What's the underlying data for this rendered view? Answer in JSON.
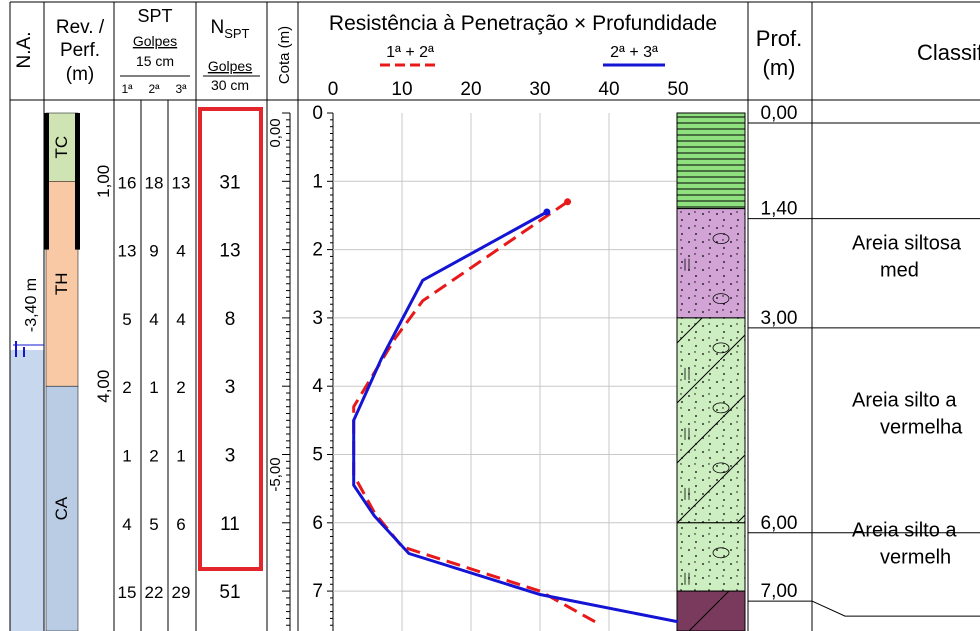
{
  "headers": {
    "na": "N.A.",
    "rev_perf": [
      "Rev. /",
      "Perf.",
      "(m)"
    ],
    "spt": {
      "title": "SPT",
      "golpes": "Golpes",
      "per": "15 cm",
      "sub": [
        "1ª",
        "2ª",
        "3ª"
      ]
    },
    "nspt": {
      "n": "N",
      "sub": "SPT",
      "golpes": "Golpes",
      "per": "30 cm"
    },
    "cota": "Cota (m)",
    "resist": "Resistência à Penetração × Profundidade",
    "prof": [
      "Prof.",
      "(m)"
    ],
    "class": "Classificação do Material"
  },
  "water_level": "-3,40 m",
  "rev_perf_layers": [
    {
      "label": "TC",
      "from": 0.0,
      "to": 1.0,
      "color": "#cfe3b3"
    },
    {
      "label": "TH",
      "from": 1.0,
      "to": 4.0,
      "color": "#f9c9a6"
    },
    {
      "label": "CA",
      "from": 4.0,
      "to": 7.6,
      "color": "#b9cce4"
    }
  ],
  "rev_depth_marks": [
    {
      "label": "1,00",
      "depth": 1.0
    },
    {
      "label": "4,00",
      "depth": 4.0
    }
  ],
  "spt_rows": [
    {
      "depth": 1.0,
      "b1": "16",
      "b2": "18",
      "b3": "13",
      "n": "31"
    },
    {
      "depth": 2.0,
      "b1": "13",
      "b2": "9",
      "b3": "4",
      "n": "13"
    },
    {
      "depth": 3.0,
      "b1": "5",
      "b2": "4",
      "b3": "4",
      "n": "8"
    },
    {
      "depth": 4.0,
      "b1": "2",
      "b2": "1",
      "b3": "2",
      "n": "3"
    },
    {
      "depth": 5.0,
      "b1": "1",
      "b2": "2",
      "b3": "1",
      "n": "3"
    },
    {
      "depth": 6.0,
      "b1": "4",
      "b2": "5",
      "b3": "6",
      "n": "11"
    },
    {
      "depth": 7.0,
      "b1": "15",
      "b2": "22",
      "b3": "29",
      "n": "51"
    }
  ],
  "cota_labels": [
    {
      "label": "0,00",
      "depth": 0.0
    },
    {
      "label": "-5,00",
      "depth": 5.0
    }
  ],
  "chart_data": {
    "type": "line",
    "title": "Resistência à Penetração × Profundidade",
    "xlim": [
      0,
      50
    ],
    "ylim": [
      0,
      7.6
    ],
    "x_ticks": [
      "0",
      "10",
      "20",
      "30",
      "40",
      "50"
    ],
    "y_ticks": [
      "0",
      "1",
      "2",
      "3",
      "4",
      "5",
      "6",
      "7"
    ],
    "grid": true,
    "series": [
      {
        "name": "1ª + 2ª",
        "color": "#e8191a",
        "dash": true,
        "points": [
          [
            34,
            1.3
          ],
          [
            13,
            2.75
          ],
          [
            9,
            3.3
          ],
          [
            3,
            4.3
          ],
          [
            3,
            5.3
          ],
          [
            6,
            5.85
          ],
          [
            10,
            6.35
          ],
          [
            30,
            7.0
          ],
          [
            38,
            7.45
          ]
        ]
      },
      {
        "name": "2ª + 3ª",
        "color": "#1414d4",
        "dash": false,
        "points": [
          [
            31,
            1.45
          ],
          [
            13,
            2.45
          ],
          [
            7,
            3.6
          ],
          [
            3,
            4.5
          ],
          [
            3,
            5.45
          ],
          [
            6,
            5.9
          ],
          [
            11,
            6.45
          ],
          [
            30,
            7.05
          ],
          [
            50,
            7.45
          ]
        ]
      }
    ]
  },
  "strata": [
    {
      "from": 0.0,
      "to": 1.4,
      "color": "#8fe07f",
      "pattern": "hlines"
    },
    {
      "from": 1.4,
      "to": 3.0,
      "color": "#d2a4d6",
      "pattern": "dots-circles"
    },
    {
      "from": 3.0,
      "to": 6.0,
      "color": "#cdeec0",
      "pattern": "diag-dots"
    },
    {
      "from": 6.0,
      "to": 7.0,
      "color": "#cdeec0",
      "pattern": "dots-circles"
    },
    {
      "from": 7.0,
      "to": 7.6,
      "color": "#7a3a5e",
      "pattern": "diag"
    }
  ],
  "prof_labels": [
    {
      "label": "0,00",
      "depth": 0.0
    },
    {
      "label": "1,40",
      "depth": 1.4
    },
    {
      "label": "3,00",
      "depth": 3.0
    },
    {
      "label": "6,00",
      "depth": 6.0
    },
    {
      "label": "7,00",
      "depth": 7.0
    }
  ],
  "classification": [
    {
      "lines": [
        "Areia siltosa",
        "med"
      ],
      "depth": 2.0
    },
    {
      "lines": [
        "Areia silto a",
        "vermelha"
      ],
      "depth": 4.3
    },
    {
      "lines": [
        "Areia silto a",
        "vermelh"
      ],
      "depth": 6.2
    }
  ]
}
